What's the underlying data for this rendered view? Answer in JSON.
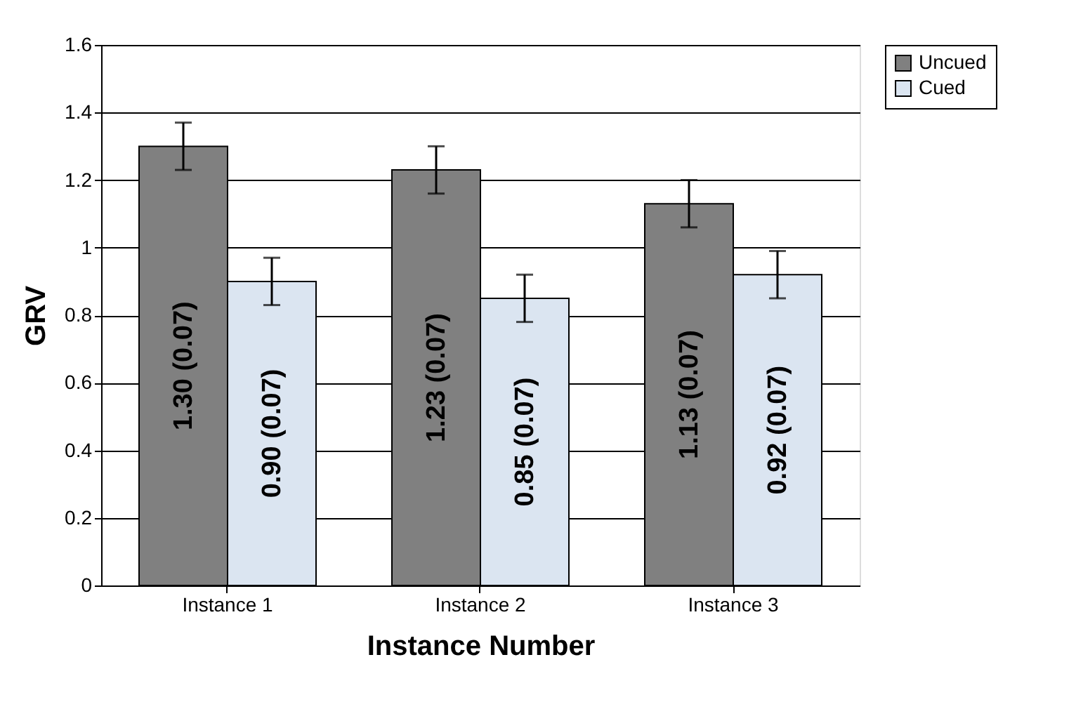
{
  "chart_data": {
    "type": "bar",
    "xlabel": "Instance Number",
    "ylabel": "GRV",
    "categories": [
      "Instance 1",
      "Instance 2",
      "Instance 3"
    ],
    "series": [
      {
        "name": "Uncued",
        "color": "#808080",
        "values": [
          1.3,
          1.23,
          1.13
        ],
        "errors": [
          0.07,
          0.07,
          0.07
        ],
        "value_labels": [
          "1.30 (0.07)",
          "1.23 (0.07)",
          "1.13 (0.07)"
        ]
      },
      {
        "name": "Cued",
        "color": "#dbe5f1",
        "values": [
          0.9,
          0.85,
          0.92
        ],
        "errors": [
          0.07,
          0.07,
          0.07
        ],
        "value_labels": [
          "0.90 (0.07)",
          "0.85 (0.07)",
          "0.92 (0.07)"
        ]
      }
    ],
    "ylim": [
      0,
      1.6
    ],
    "yticks": [
      0,
      0.2,
      0.4,
      0.6,
      0.8,
      1,
      1.2,
      1.4,
      1.6
    ],
    "grid": "y",
    "legend": "right"
  }
}
